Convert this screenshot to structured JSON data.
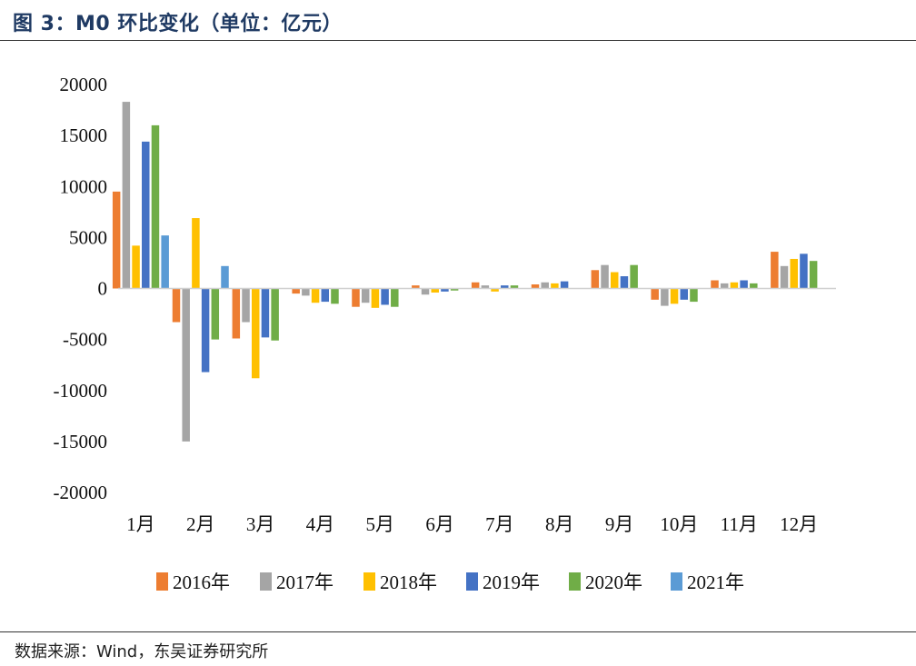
{
  "header": {
    "title": "图 3：M0 环比变化（单位：亿元）"
  },
  "footer": {
    "source": "数据来源：Wind，东吴证券研究所"
  },
  "chart_data": {
    "type": "bar",
    "title": "图 3：M0 环比变化（单位：亿元）",
    "xlabel": "",
    "ylabel": "",
    "ylim": [
      -20000,
      20000
    ],
    "yticks": [
      20000,
      15000,
      10000,
      5000,
      0,
      -5000,
      -10000,
      -15000,
      -20000
    ],
    "legend_position": "bottom",
    "grid": false,
    "categories": [
      "1月",
      "2月",
      "3月",
      "4月",
      "5月",
      "6月",
      "7月",
      "8月",
      "9月",
      "10月",
      "11月",
      "12月"
    ],
    "series": [
      {
        "name": "2016年",
        "color": "#ED7D31",
        "values": [
          9500,
          -3300,
          -4900,
          -500,
          -1800,
          300,
          600,
          400,
          1800,
          -1100,
          800,
          3600
        ]
      },
      {
        "name": "2017年",
        "color": "#A5A5A5",
        "values": [
          18300,
          -15000,
          -3300,
          -700,
          -1400,
          -600,
          300,
          600,
          2300,
          -1700,
          500,
          2200
        ]
      },
      {
        "name": "2018年",
        "color": "#FFC000",
        "values": [
          4200,
          6900,
          -8800,
          -1400,
          -1900,
          -400,
          -300,
          500,
          1600,
          -1500,
          600,
          2900
        ]
      },
      {
        "name": "2019年",
        "color": "#4472C4",
        "values": [
          14400,
          -8200,
          -4800,
          -1300,
          -1600,
          -300,
          300,
          700,
          1200,
          -1100,
          800,
          3400
        ]
      },
      {
        "name": "2020年",
        "color": "#70AD47",
        "values": [
          16000,
          -5000,
          -5100,
          -1500,
          -1800,
          -200,
          300,
          0,
          2300,
          -1300,
          500,
          2700
        ]
      },
      {
        "name": "2021年",
        "color": "#5B9BD5",
        "values": [
          5200,
          2200,
          null,
          null,
          null,
          null,
          null,
          null,
          null,
          null,
          null,
          null
        ]
      }
    ]
  }
}
